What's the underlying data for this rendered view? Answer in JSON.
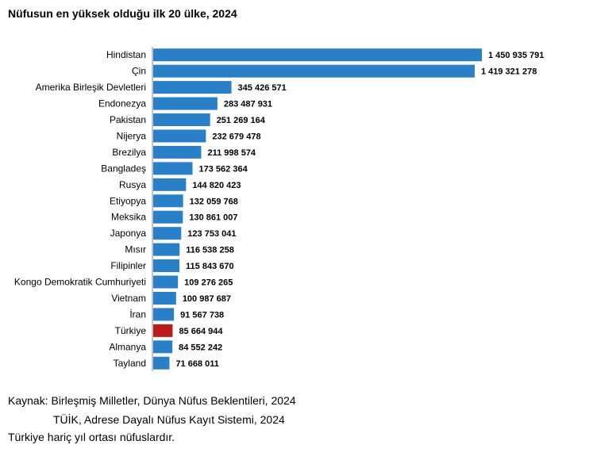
{
  "chart_data": {
    "type": "bar",
    "orientation": "horizontal",
    "title": "Nüfusun en yüksek olduğu ilk 20 ülke, 2024",
    "categories": [
      "Hindistan",
      "Çin",
      "Amerika Birleşik Devletleri",
      "Endonezya",
      "Pakistan",
      "Nijerya",
      "Brezilya",
      "Bangladeş",
      "Rusya",
      "Etiyopya",
      "Meksika",
      "Japonya",
      "Mısır",
      "Filipinler",
      "Kongo Demokratik Cumhuriyeti",
      "Vietnam",
      "İran",
      "Türkiye",
      "Almanya",
      "Tayland"
    ],
    "values": [
      1450935791,
      1419321278,
      345426571,
      283487931,
      251269164,
      232679478,
      211998574,
      173562364,
      144820423,
      132059768,
      130861007,
      123753041,
      116538258,
      115843670,
      109276265,
      100987687,
      91567738,
      85664944,
      84552242,
      71668011
    ],
    "value_labels": [
      "1 450 935 791",
      "1 419 321 278",
      "345 426 571",
      "283 487 931",
      "251 269 164",
      "232 679 478",
      "211 998 574",
      "173 562 364",
      "144 820 423",
      "132 059 768",
      "130 861 007",
      "123 753 041",
      "116 538 258",
      "115 843 670",
      "109 276 265",
      "100 987 687",
      "91 567 738",
      "85 664 944",
      "84 552 242",
      "71 668 011"
    ],
    "colors": {
      "default": "#2a7fc9",
      "highlight": "#b81c1c"
    },
    "highlight_category": "Türkiye"
  },
  "notes": {
    "source_line_1": "Kaynak: Birleşmiş Milletler, Dünya Nüfus Beklentileri, 2024",
    "source_line_2": "TÜİK, Adrese Dayalı Nüfus Kayıt Sistemi, 2024",
    "footnote": "Türkiye hariç yıl ortası nüfuslardır."
  }
}
